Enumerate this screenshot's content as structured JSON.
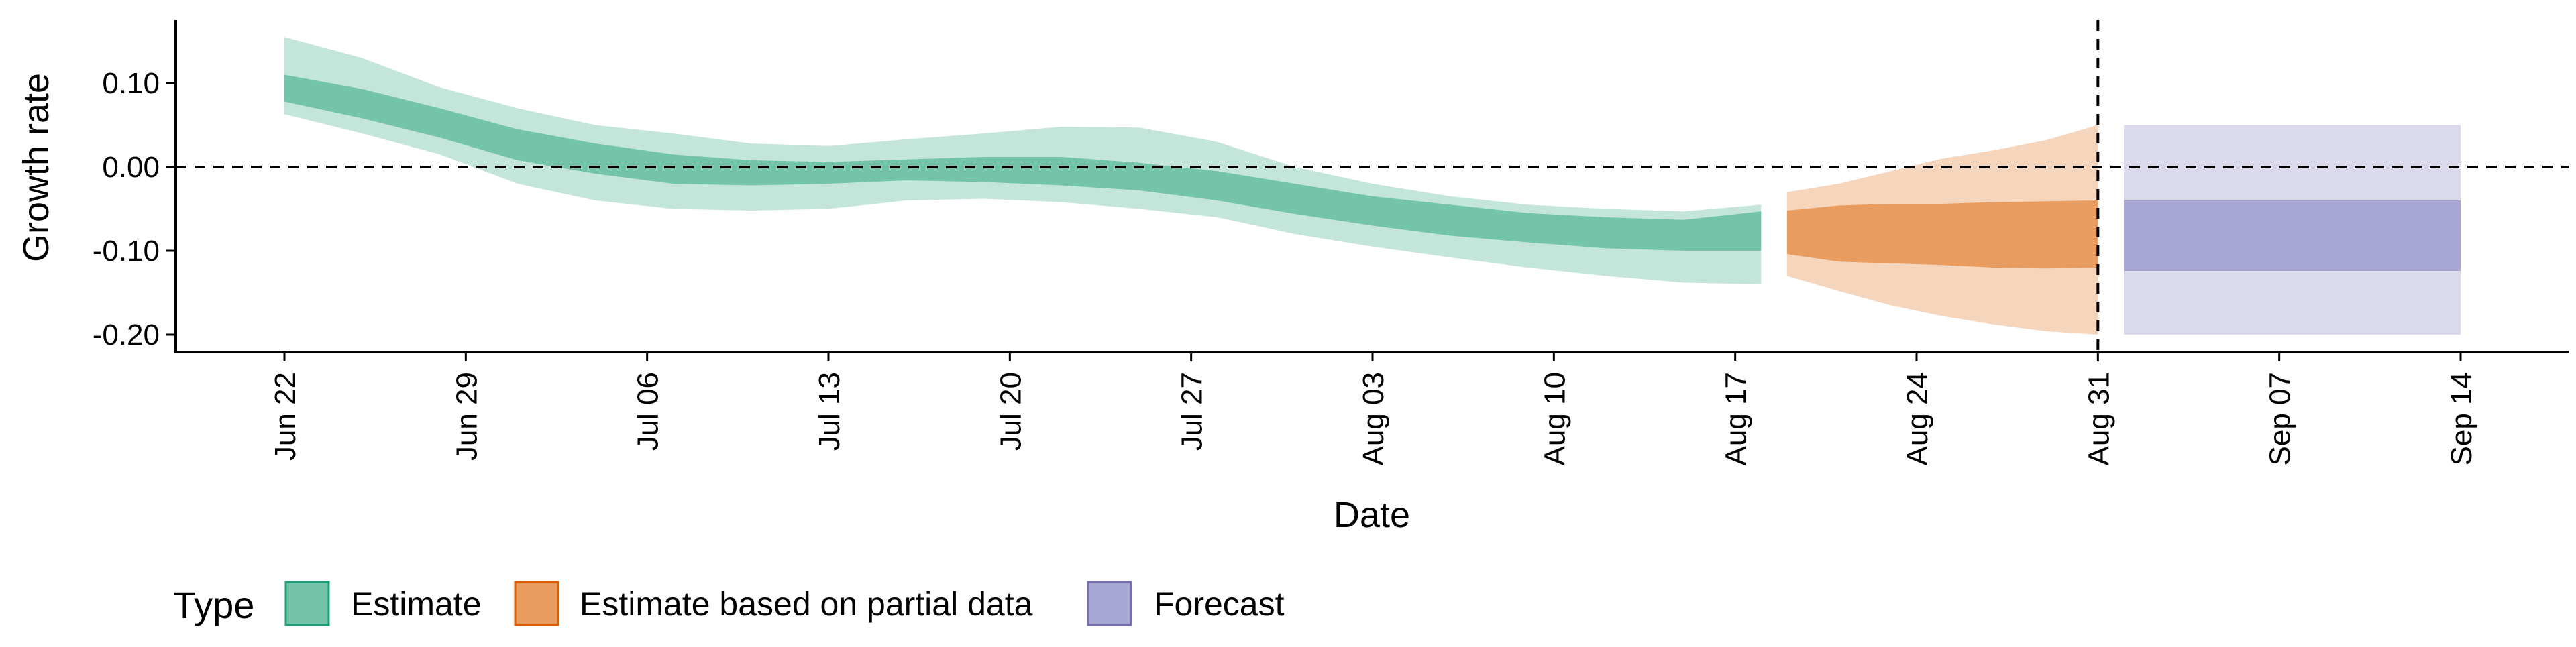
{
  "chart_data": {
    "type": "area",
    "xlabel": "Date",
    "ylabel": "Growth rate",
    "ylim": [
      -0.21,
      0.17
    ],
    "yticks": [
      0.1,
      0.0,
      -0.1,
      -0.2
    ],
    "ytick_labels": [
      "0.10",
      "0.00",
      "-0.10",
      "-0.20"
    ],
    "xlim": [
      "2020-06-22",
      "2020-09-14"
    ],
    "xticks": [
      "2020-06-22",
      "2020-06-29",
      "2020-07-06",
      "2020-07-13",
      "2020-07-20",
      "2020-07-27",
      "2020-08-03",
      "2020-08-10",
      "2020-08-17",
      "2020-08-24",
      "2020-08-31",
      "2020-09-07",
      "2020-09-14"
    ],
    "xtick_labels": [
      "Jun 22",
      "Jun 29",
      "Jul 06",
      "Jul 13",
      "Jul 20",
      "Jul 27",
      "Aug 03",
      "Aug 10",
      "Aug 17",
      "Aug 24",
      "Aug 31",
      "Sep 07",
      "Sep 14"
    ],
    "reference_lines": {
      "horizontal_y": 0.0,
      "vertical_x": "2020-08-31"
    },
    "legend": {
      "title": "Type",
      "position": "bottom-left"
    },
    "series": [
      {
        "name": "Estimate",
        "color": "#73c4a8",
        "dates": [
          "2020-06-22",
          "2020-06-25",
          "2020-06-28",
          "2020-07-01",
          "2020-07-04",
          "2020-07-07",
          "2020-07-10",
          "2020-07-13",
          "2020-07-16",
          "2020-07-19",
          "2020-07-22",
          "2020-07-25",
          "2020-07-28",
          "2020-07-31",
          "2020-08-03",
          "2020-08-06",
          "2020-08-09",
          "2020-08-12",
          "2020-08-15",
          "2020-08-18"
        ],
        "inner_upper": [
          0.11,
          0.093,
          0.07,
          0.045,
          0.028,
          0.015,
          0.008,
          0.006,
          0.009,
          0.012,
          0.012,
          0.005,
          -0.005,
          -0.02,
          -0.035,
          -0.045,
          -0.055,
          -0.06,
          -0.063,
          -0.053
        ],
        "inner_lower": [
          0.078,
          0.058,
          0.035,
          0.008,
          -0.008,
          -0.02,
          -0.022,
          -0.02,
          -0.016,
          -0.018,
          -0.022,
          -0.028,
          -0.04,
          -0.056,
          -0.07,
          -0.082,
          -0.09,
          -0.097,
          -0.1,
          -0.1
        ],
        "outer_upper": [
          0.155,
          0.13,
          0.095,
          0.07,
          0.05,
          0.04,
          0.028,
          0.025,
          0.033,
          0.04,
          0.048,
          0.047,
          0.03,
          0.0,
          -0.02,
          -0.035,
          -0.045,
          -0.05,
          -0.053,
          -0.045
        ],
        "outer_lower": [
          0.063,
          0.04,
          0.015,
          -0.02,
          -0.04,
          -0.05,
          -0.052,
          -0.05,
          -0.04,
          -0.038,
          -0.042,
          -0.05,
          -0.06,
          -0.08,
          -0.095,
          -0.108,
          -0.12,
          -0.13,
          -0.138,
          -0.14
        ]
      },
      {
        "name": "Estimate based on partial data",
        "color": "#e89c5f",
        "dates": [
          "2020-08-19",
          "2020-08-21",
          "2020-08-23",
          "2020-08-25",
          "2020-08-27",
          "2020-08-29",
          "2020-08-31"
        ],
        "inner_upper": [
          -0.052,
          -0.046,
          -0.044,
          -0.044,
          -0.042,
          -0.041,
          -0.04
        ],
        "inner_lower": [
          -0.104,
          -0.113,
          -0.115,
          -0.117,
          -0.12,
          -0.121,
          -0.12
        ],
        "outer_upper": [
          -0.03,
          -0.02,
          -0.005,
          0.01,
          0.02,
          0.032,
          0.05
        ],
        "outer_lower": [
          -0.13,
          -0.148,
          -0.165,
          -0.178,
          -0.188,
          -0.196,
          -0.2
        ]
      },
      {
        "name": "Forecast",
        "color": "#a8a6d2",
        "dates": [
          "2020-09-01",
          "2020-09-14"
        ],
        "inner_upper": [
          -0.04,
          -0.04
        ],
        "inner_lower": [
          -0.124,
          -0.124
        ],
        "outer_upper": [
          0.05,
          0.05
        ],
        "outer_lower": [
          -0.2,
          -0.2
        ]
      }
    ]
  }
}
